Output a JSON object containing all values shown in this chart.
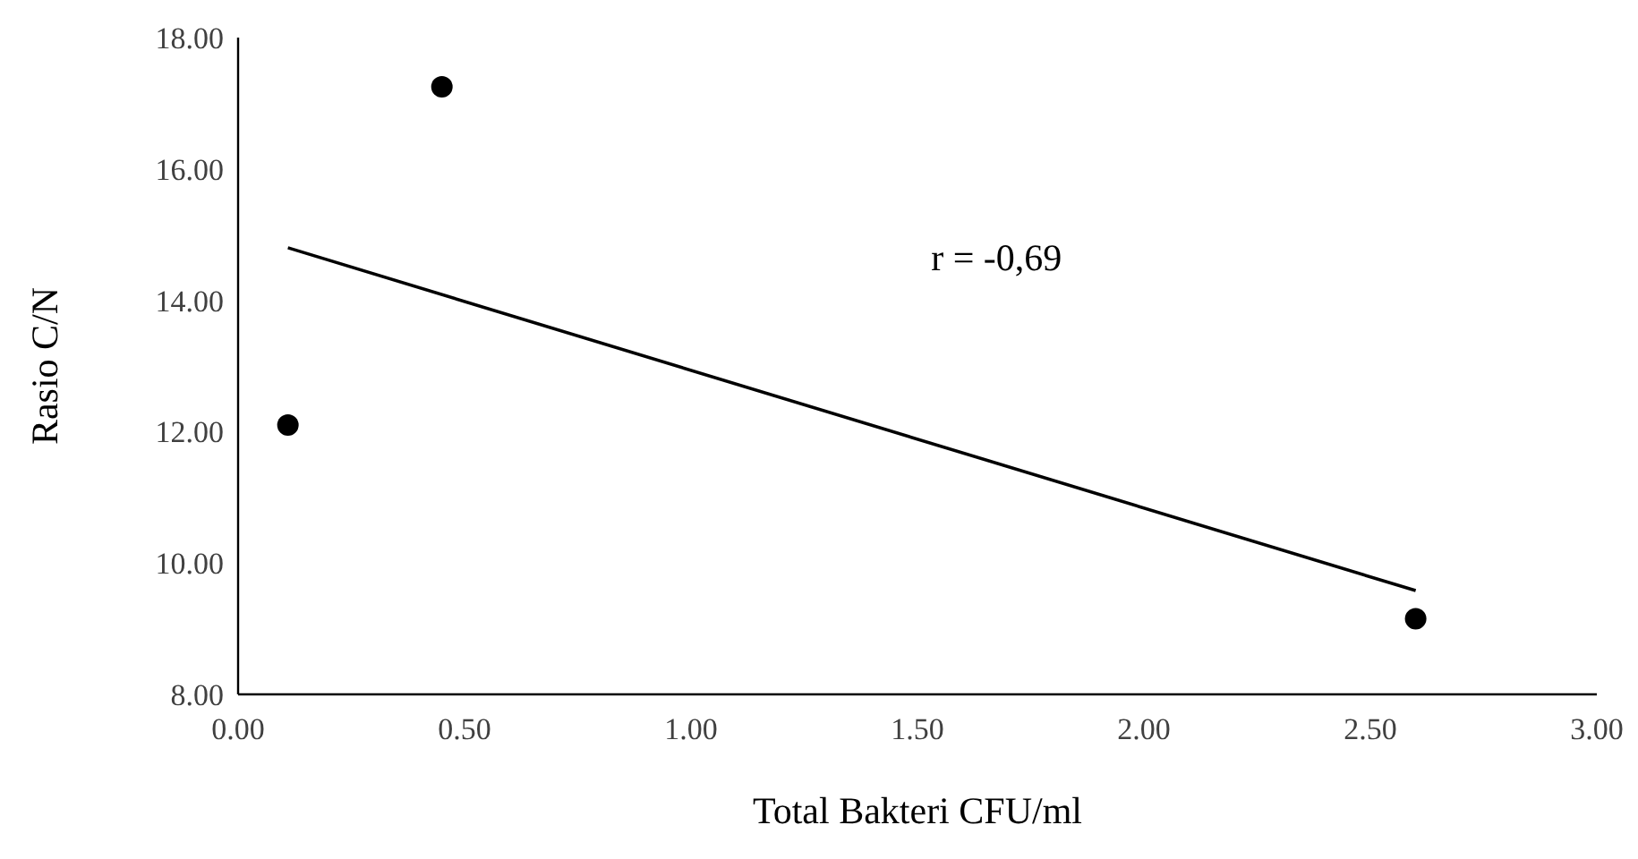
{
  "chart_data": {
    "type": "scatter",
    "xlabel": "Total Bakteri CFU/ml",
    "ylabel": "Rasio C/N",
    "xlim": [
      0,
      3
    ],
    "ylim": [
      8,
      18
    ],
    "xticks": [
      {
        "value": 0,
        "label": "0.00"
      },
      {
        "value": 0.5,
        "label": "0.50"
      },
      {
        "value": 1,
        "label": "1.00"
      },
      {
        "value": 1.5,
        "label": "1.50"
      },
      {
        "value": 2,
        "label": "2.00"
      },
      {
        "value": 2.5,
        "label": "2.50"
      },
      {
        "value": 3,
        "label": "3.00"
      }
    ],
    "yticks": [
      {
        "value": 8,
        "label": "8.00"
      },
      {
        "value": 10,
        "label": "10.00"
      },
      {
        "value": 12,
        "label": "12.00"
      },
      {
        "value": 14,
        "label": "14.00"
      },
      {
        "value": 16,
        "label": "16.00"
      },
      {
        "value": 18,
        "label": "18.00"
      }
    ],
    "grid": false,
    "marker": "circle",
    "series": [
      {
        "color": "#000000",
        "x": [
          0.11,
          0.45,
          2.6
        ],
        "values": [
          12.1,
          17.25,
          9.15
        ]
      },
      {
        "type": "line",
        "color": "#000000",
        "x": [
          0.11,
          2.6
        ],
        "values": [
          14.8,
          9.58
        ],
        "marker": "none"
      }
    ],
    "annotations": [
      "r = -0,69"
    ]
  }
}
